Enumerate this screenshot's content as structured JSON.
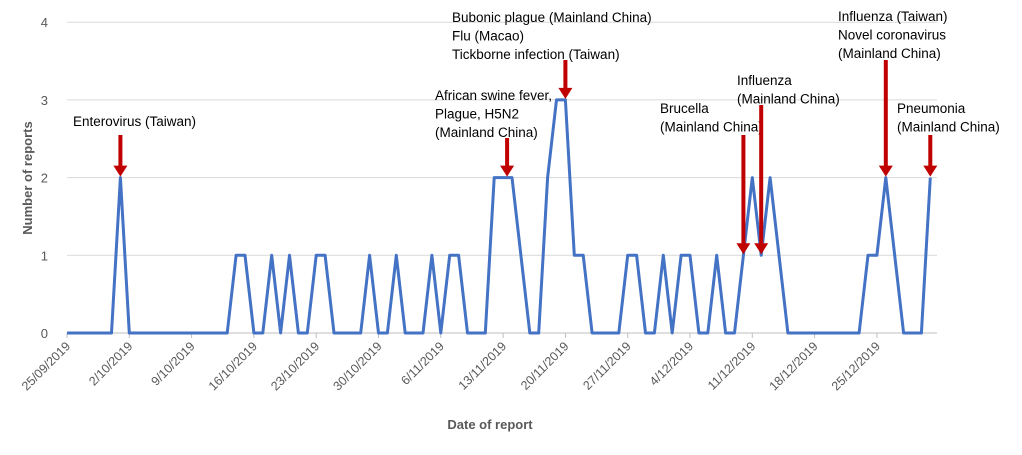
{
  "chart_data": {
    "type": "line",
    "title": "",
    "xlabel": "Date of report",
    "ylabel": "Number of reports",
    "ylim": [
      0,
      4
    ],
    "yticks": [
      "0",
      "1",
      "2",
      "3",
      "4"
    ],
    "grid": "horizontal",
    "line_color": "#4472C4",
    "arrow_color": "#C00000",
    "xtick_labels": [
      "25/09/2019",
      "2/10/2019",
      "9/10/2019",
      "16/10/2019",
      "23/10/2019",
      "30/10/2019",
      "6/11/2019",
      "13/11/2019",
      "20/11/2019",
      "27/11/2019",
      "4/12/2019",
      "11/12/2019",
      "18/12/2019",
      "25/12/2019"
    ],
    "series": [
      {
        "x": [
          "25/09/2019",
          "26/09/2019",
          "27/09/2019",
          "28/09/2019",
          "29/09/2019",
          "30/09/2019",
          "1/10/2019",
          "2/10/2019",
          "3/10/2019",
          "4/10/2019",
          "5/10/2019",
          "6/10/2019",
          "7/10/2019",
          "8/10/2019",
          "9/10/2019",
          "10/10/2019",
          "11/10/2019",
          "12/10/2019",
          "13/10/2019",
          "14/10/2019",
          "15/10/2019",
          "16/10/2019",
          "17/10/2019",
          "18/10/2019",
          "19/10/2019",
          "20/10/2019",
          "21/10/2019",
          "22/10/2019",
          "23/10/2019",
          "24/10/2019",
          "25/10/2019",
          "26/10/2019",
          "27/10/2019",
          "28/10/2019",
          "29/10/2019",
          "30/10/2019",
          "31/10/2019",
          "1/11/2019",
          "2/11/2019",
          "3/11/2019",
          "4/11/2019",
          "5/11/2019",
          "6/11/2019",
          "7/11/2019",
          "8/11/2019",
          "9/11/2019",
          "10/11/2019",
          "11/11/2019",
          "12/11/2019",
          "13/11/2019",
          "14/11/2019",
          "15/11/2019",
          "16/11/2019",
          "17/11/2019",
          "18/11/2019",
          "19/11/2019",
          "20/11/2019",
          "21/11/2019",
          "22/11/2019",
          "23/11/2019",
          "24/11/2019",
          "25/11/2019",
          "26/11/2019",
          "27/11/2019",
          "28/11/2019",
          "29/11/2019",
          "30/11/2019",
          "1/12/2019",
          "2/12/2019",
          "3/12/2019",
          "4/12/2019",
          "5/12/2019",
          "6/12/2019",
          "7/12/2019",
          "8/12/2019",
          "9/12/2019",
          "10/12/2019",
          "11/12/2019",
          "12/12/2019",
          "13/12/2019",
          "14/12/2019",
          "15/12/2019",
          "16/12/2019",
          "17/12/2019",
          "18/12/2019",
          "19/12/2019",
          "20/12/2019",
          "21/12/2019",
          "22/12/2019",
          "23/12/2019",
          "24/12/2019",
          "25/12/2019",
          "26/12/2019",
          "27/12/2019",
          "28/12/2019",
          "29/12/2019",
          "30/12/2019",
          "31/12/2019"
        ],
        "values": [
          0,
          0,
          0,
          0,
          0,
          0,
          2,
          0,
          0,
          0,
          0,
          0,
          0,
          0,
          0,
          0,
          0,
          0,
          0,
          1,
          1,
          0,
          0,
          1,
          0,
          1,
          0,
          0,
          1,
          1,
          0,
          0,
          0,
          0,
          1,
          0,
          0,
          1,
          0,
          0,
          0,
          1,
          0,
          1,
          1,
          0,
          0,
          0,
          2,
          2,
          2,
          1,
          0,
          0,
          2,
          3,
          3,
          1,
          1,
          0,
          0,
          0,
          0,
          1,
          1,
          0,
          0,
          1,
          0,
          1,
          1,
          0,
          0,
          1,
          0,
          0,
          1,
          2,
          1,
          2,
          1,
          0,
          0,
          0,
          0,
          0,
          0,
          0,
          0,
          0,
          1,
          1,
          2,
          1,
          0,
          0,
          0,
          2
        ]
      }
    ],
    "annotations": [
      {
        "date": "1/10/2019",
        "lines": [
          "Enterovirus (Taiwan)"
        ]
      },
      {
        "date": "13/11/2019",
        "lines": [
          "African swine fever,",
          "Plague, H5N2",
          "(Mainland China)"
        ]
      },
      {
        "date": "20/11/2019",
        "lines": [
          "Bubonic plague (Mainland China)",
          "Flu (Macao)",
          "Tickborne infection (Taiwan)"
        ]
      },
      {
        "date": "10/12/2019",
        "lines": [
          "Brucella",
          "(Mainland China)"
        ]
      },
      {
        "date": "12/12/2019",
        "lines": [
          "Influenza",
          "(Mainland China)"
        ]
      },
      {
        "date": "26/12/2019",
        "lines": [
          "Influenza (Taiwan)",
          "Novel coronavirus",
          "(Mainland China)"
        ]
      },
      {
        "date": "31/12/2019",
        "lines": [
          "Pneumonia",
          "(Mainland China)"
        ]
      }
    ]
  }
}
